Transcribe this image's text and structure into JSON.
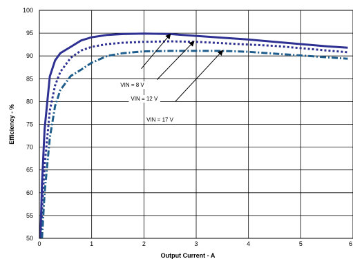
{
  "chart_data": {
    "type": "line",
    "title": "",
    "xlabel": "Output Current - A",
    "ylabel": "Efficiency - %",
    "xlim": [
      0,
      6
    ],
    "ylim": [
      50,
      100
    ],
    "xticks": [
      "0",
      "1",
      "2",
      "3",
      "4",
      "5",
      "6"
    ],
    "yticks": [
      "50",
      "55",
      "60",
      "65",
      "70",
      "75",
      "80",
      "85",
      "90",
      "95",
      "100"
    ],
    "grid": true,
    "legend": "none",
    "series": [
      {
        "label": "VIN = 8 V",
        "style": "solid",
        "color": "#2e3192",
        "points": [
          [
            0.02,
            50
          ],
          [
            0.05,
            62
          ],
          [
            0.1,
            74
          ],
          [
            0.2,
            85.5
          ],
          [
            0.3,
            89
          ],
          [
            0.4,
            90.6
          ],
          [
            0.6,
            92
          ],
          [
            0.8,
            93.4
          ],
          [
            1.0,
            94.1
          ],
          [
            1.3,
            94.6
          ],
          [
            1.6,
            94.8
          ],
          [
            2.0,
            94.9
          ],
          [
            2.5,
            94.8
          ],
          [
            3.0,
            94.4
          ],
          [
            3.5,
            94.0
          ],
          [
            4.0,
            93.6
          ],
          [
            4.5,
            93.1
          ],
          [
            5.0,
            92.6
          ],
          [
            5.5,
            92.1
          ],
          [
            5.9,
            91.8
          ]
        ]
      },
      {
        "label": "VIN = 12 V",
        "style": "dotted",
        "color": "#2e3192",
        "points": [
          [
            0.03,
            50
          ],
          [
            0.06,
            58
          ],
          [
            0.1,
            66
          ],
          [
            0.2,
            78
          ],
          [
            0.3,
            83.5
          ],
          [
            0.4,
            86.5
          ],
          [
            0.6,
            89.6
          ],
          [
            0.8,
            91.2
          ],
          [
            1.0,
            92
          ],
          [
            1.3,
            92.6
          ],
          [
            1.6,
            92.9
          ],
          [
            2.0,
            93.1
          ],
          [
            2.5,
            93.2
          ],
          [
            3.0,
            93.1
          ],
          [
            3.5,
            92.8
          ],
          [
            4.0,
            92.5
          ],
          [
            4.5,
            92.2
          ],
          [
            5.0,
            91.7
          ],
          [
            5.5,
            91.2
          ],
          [
            5.9,
            90.8
          ]
        ]
      },
      {
        "label": "VIN = 17 V",
        "style": "dash-dot",
        "color": "#1f5e8c",
        "points": [
          [
            0.05,
            50
          ],
          [
            0.1,
            60
          ],
          [
            0.2,
            72
          ],
          [
            0.3,
            79
          ],
          [
            0.4,
            82.5
          ],
          [
            0.6,
            85.6
          ],
          [
            0.8,
            87
          ],
          [
            1.0,
            88.5
          ],
          [
            1.3,
            90
          ],
          [
            1.6,
            90.6
          ],
          [
            2.0,
            91
          ],
          [
            2.5,
            91.1
          ],
          [
            3.0,
            91.1
          ],
          [
            3.5,
            91.1
          ],
          [
            4.0,
            90.9
          ],
          [
            4.5,
            90.5
          ],
          [
            5.0,
            90.1
          ],
          [
            5.5,
            89.7
          ],
          [
            5.9,
            89.4
          ]
        ]
      }
    ],
    "annotations": [
      {
        "text": "VIN = 8 V",
        "label_at": [
          1.55,
          83.2
        ],
        "arrow_from": [
          1.95,
          87.2
        ],
        "arrow_to": [
          2.5,
          94.7
        ]
      },
      {
        "text": "VIN = 12 V",
        "label_at": [
          1.75,
          80.2
        ],
        "arrow_from": [
          2.25,
          84.8
        ],
        "arrow_to": [
          2.95,
          93.1
        ]
      },
      {
        "text": "VIN = 17 V",
        "label_at": [
          2.05,
          75.6
        ],
        "arrow_from": [
          2.6,
          80.0
        ],
        "arrow_to": [
          3.5,
          91.1
        ]
      }
    ]
  }
}
